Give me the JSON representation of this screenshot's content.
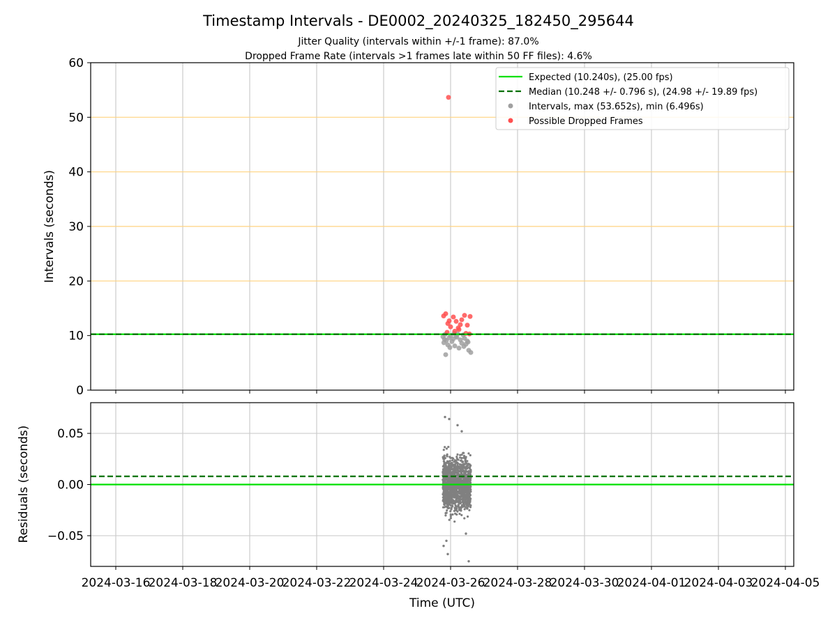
{
  "title": "Timestamp Intervals - DE0002_20240325_182450_295644",
  "subtitle_lines": [
    "Jitter Quality (intervals within +/-1 frame): 87.0%",
    "Dropped Frame Rate (intervals >1 frames late within 50 FF files): 4.6%"
  ],
  "chart_data": [
    {
      "type": "scatter",
      "panel": "intervals",
      "ylabel": "Intervals (seconds)",
      "ylim": [
        0,
        60
      ],
      "yticks": [
        0,
        10,
        20,
        30,
        40,
        50,
        60
      ],
      "xlim": [
        "2024-03-15T06:00",
        "2024-04-05T06:00"
      ],
      "x_gridlines": true,
      "y_gridlines": [
        20,
        30,
        40,
        50
      ],
      "y_grid_color": "#ffd27f",
      "legend": {
        "placement": "top-right",
        "entries": [
          {
            "label": "Expected (10.240s), (25.00 fps)",
            "style": "solid-line",
            "color": "#00e000"
          },
          {
            "label": "Median (10.248 +/- 0.796 s), (24.98 +/- 19.89 fps)",
            "style": "dashed-line",
            "color": "#007000"
          },
          {
            "label": "Intervals, max (53.652s), min (6.496s)",
            "style": "marker",
            "color": "#a0a0a0"
          },
          {
            "label": "Possible Dropped Frames",
            "style": "marker",
            "color": "#ff5050"
          }
        ]
      },
      "expected_line": 10.24,
      "median_line": 10.248,
      "series": [
        {
          "name": "Intervals, max (53.652s), min (6.496s)",
          "color": "#a0a0a0",
          "points": [
            [
              "2024-03-25T18:30",
              9.8
            ],
            [
              "2024-03-25T19:10",
              8.7
            ],
            [
              "2024-03-25T20:00",
              10.2
            ],
            [
              "2024-03-25T21:00",
              9.1
            ],
            [
              "2024-03-25T22:00",
              8.3
            ],
            [
              "2024-03-25T23:00",
              9.6
            ],
            [
              "2024-03-26T00:00",
              10.0
            ],
            [
              "2024-03-26T01:00",
              8.9
            ],
            [
              "2024-03-26T02:00",
              9.4
            ],
            [
              "2024-03-26T03:00",
              8.1
            ],
            [
              "2024-03-26T04:00",
              9.9
            ],
            [
              "2024-03-26T05:00",
              10.3
            ],
            [
              "2024-03-26T06:00",
              7.7
            ],
            [
              "2024-03-26T07:00",
              9.2
            ],
            [
              "2024-03-26T08:00",
              8.6
            ],
            [
              "2024-03-26T09:00",
              10.1
            ],
            [
              "2024-03-26T10:00",
              9.5
            ],
            [
              "2024-03-26T11:00",
              8.4
            ],
            [
              "2024-03-26T12:00",
              9.0
            ],
            [
              "2024-03-26T13:00",
              7.3
            ],
            [
              "2024-03-25T20:30",
              6.5
            ],
            [
              "2024-03-26T14:30",
              6.9
            ],
            [
              "2024-03-25T23:30",
              7.8
            ],
            [
              "2024-03-26T09:30",
              8.0
            ],
            [
              "2024-03-26T04:30",
              9.7
            ],
            [
              "2024-03-26T02:30",
              10.4
            ],
            [
              "2024-03-25T19:40",
              9.3
            ],
            [
              "2024-03-26T12:30",
              8.8
            ]
          ]
        },
        {
          "name": "Possible Dropped Frames",
          "color": "#ff5050",
          "points": [
            [
              "2024-03-25T22:30",
              53.652
            ],
            [
              "2024-03-25T19:00",
              13.6
            ],
            [
              "2024-03-25T20:30",
              14.0
            ],
            [
              "2024-03-25T22:00",
              12.2
            ],
            [
              "2024-03-26T00:00",
              11.6
            ],
            [
              "2024-03-26T02:00",
              13.4
            ],
            [
              "2024-03-26T04:00",
              12.6
            ],
            [
              "2024-03-26T06:00",
              11.1
            ],
            [
              "2024-03-26T08:00",
              12.9
            ],
            [
              "2024-03-26T10:00",
              13.7
            ],
            [
              "2024-03-26T12:00",
              11.9
            ],
            [
              "2024-03-26T14:00",
              13.5
            ],
            [
              "2024-03-25T21:30",
              10.6
            ],
            [
              "2024-03-26T03:00",
              10.8
            ],
            [
              "2024-03-26T07:00",
              12.0
            ],
            [
              "2024-03-26T11:00",
              10.4
            ],
            [
              "2024-03-26T13:30",
              10.3
            ],
            [
              "2024-03-25T23:00",
              12.7
            ],
            [
              "2024-03-26T05:30",
              11.4
            ]
          ]
        }
      ]
    },
    {
      "type": "scatter",
      "panel": "residuals",
      "xlabel": "Time (UTC)",
      "ylabel": "Residuals (seconds)",
      "ylim": [
        -0.08,
        0.08
      ],
      "yticks": [
        0.05,
        0.0,
        -0.05
      ],
      "ytick_labels": [
        "0.05",
        "0.00",
        "−0.05"
      ],
      "x_tick_labels": [
        "2024-03-16",
        "2024-03-18",
        "2024-03-20",
        "2024-03-22",
        "2024-03-24",
        "2024-03-26",
        "2024-03-28",
        "2024-03-30",
        "2024-04-01",
        "2024-04-03",
        "2024-04-05"
      ],
      "x_ticks": [
        "2024-03-16",
        "2024-03-18",
        "2024-03-20",
        "2024-03-22",
        "2024-03-24",
        "2024-03-26",
        "2024-03-28",
        "2024-03-30",
        "2024-04-01",
        "2024-04-03",
        "2024-04-05"
      ],
      "expected_line": 0.0,
      "median_line": 0.008,
      "cluster": {
        "start": "2024-03-25T18:24",
        "end": "2024-03-26T14:30",
        "mean": 0.0,
        "spread": 0.018
      },
      "color": "#808080",
      "points": [
        [
          "2024-03-25T20:00",
          0.066
        ],
        [
          "2024-03-25T23:00",
          0.064
        ],
        [
          "2024-03-26T05:00",
          0.058
        ],
        [
          "2024-03-25T19:00",
          -0.06
        ],
        [
          "2024-03-25T22:00",
          -0.068
        ],
        [
          "2024-03-26T13:00",
          -0.075
        ],
        [
          "2024-03-25T21:00",
          -0.055
        ],
        [
          "2024-03-26T08:00",
          0.052
        ],
        [
          "2024-03-26T11:00",
          -0.048
        ]
      ]
    }
  ]
}
